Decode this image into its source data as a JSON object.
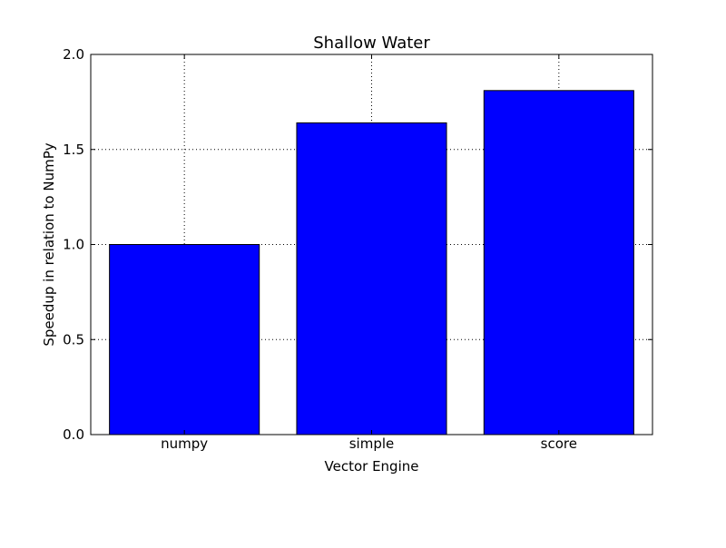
{
  "chart_data": {
    "type": "bar",
    "title": "Shallow Water",
    "xlabel": "Vector Engine",
    "ylabel": "Speedup in relation to NumPy",
    "categories": [
      "numpy",
      "simple",
      "score"
    ],
    "values": [
      1.0,
      1.64,
      1.81
    ],
    "ylim": [
      0,
      2.0
    ],
    "yticks": [
      "0.0",
      "0.5",
      "1.0",
      "1.5",
      "2.0"
    ],
    "grid": true,
    "legend": "none",
    "bar_color": "#0000ff",
    "bar_edge_color": "#000000"
  }
}
